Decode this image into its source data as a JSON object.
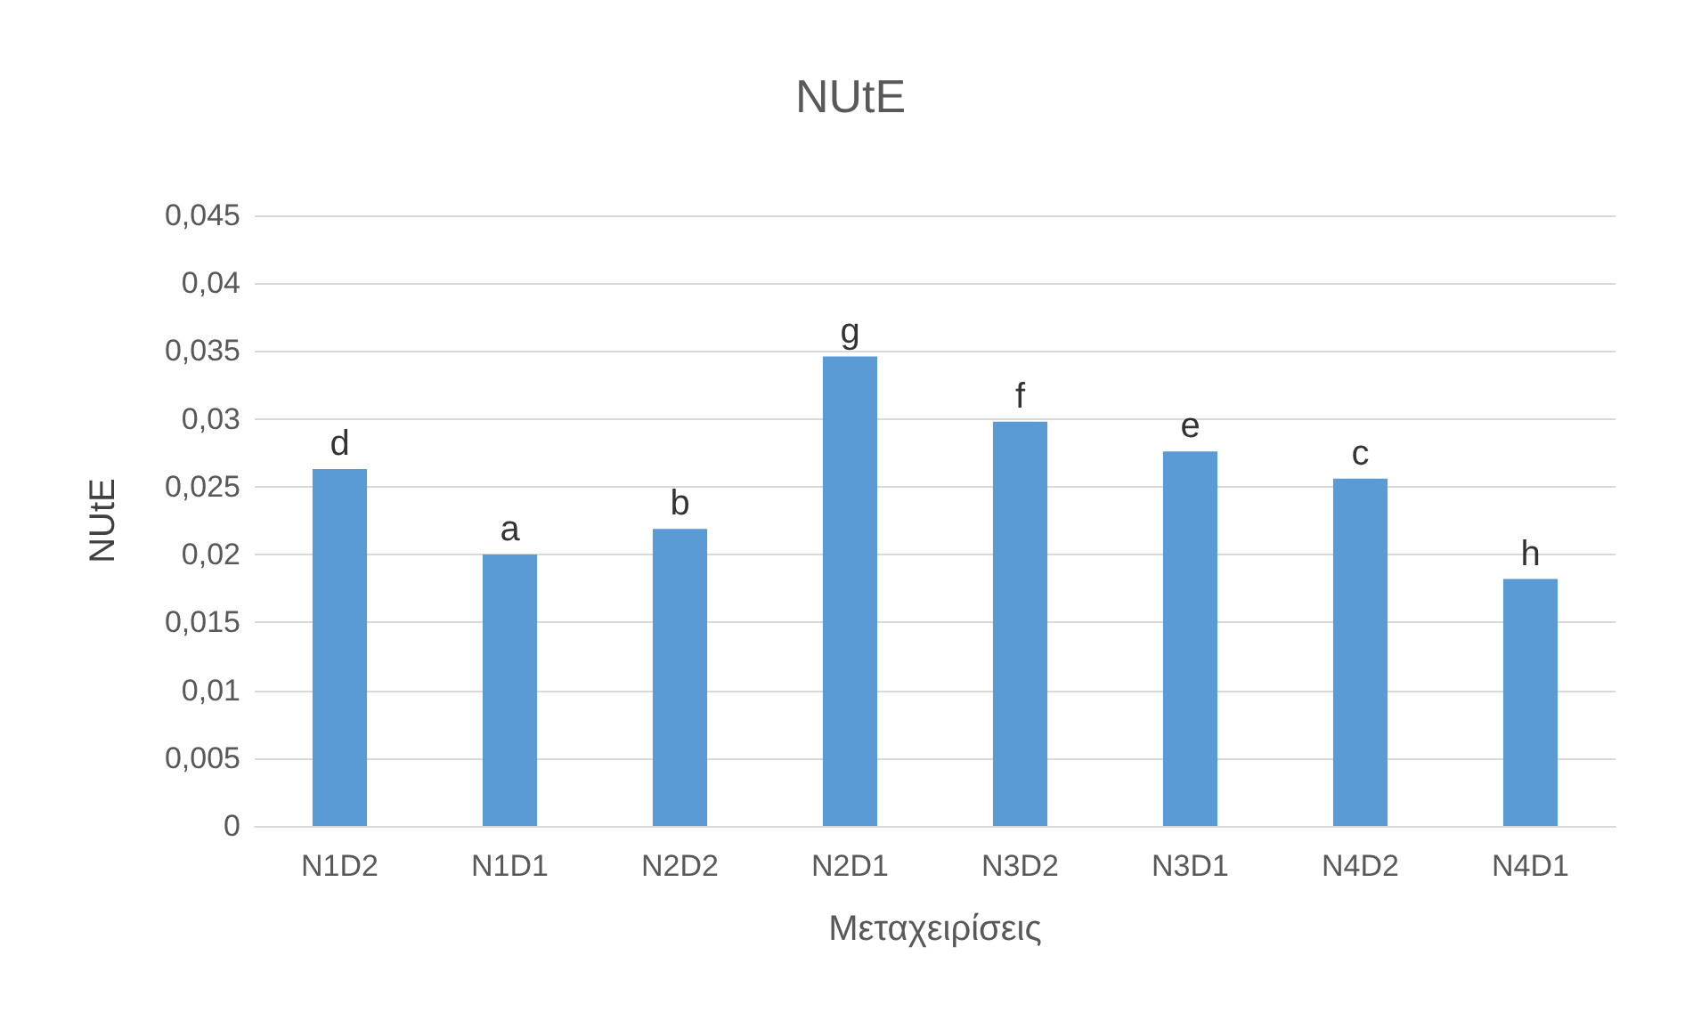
{
  "chart_data": {
    "type": "bar",
    "title": "NUtE",
    "xlabel": "Μεταχειρίσεις",
    "ylabel": "NUtE",
    "categories": [
      "N1D2",
      "N1D1",
      "N2D2",
      "N2D1",
      "N3D2",
      "N3D1",
      "N4D2",
      "N4D1"
    ],
    "values": [
      0.0263,
      0.02,
      0.0219,
      0.0346,
      0.0298,
      0.0276,
      0.0256,
      0.0182
    ],
    "color": "#5b9bd5",
    "ylim": [
      0,
      0.045
    ],
    "yticks": [
      0,
      {
        "value": 0.005,
        "label": "0,005"
      },
      {
        "value": 0.01,
        "label": "0,01"
      },
      {
        "value": 0.015,
        "label": "0,015"
      },
      {
        "value": 0.02,
        "label": "0,02"
      },
      {
        "value": 0.025,
        "label": "0,025"
      },
      {
        "value": 0.03,
        "label": "0,03"
      },
      {
        "value": 0.035,
        "label": "0,035"
      },
      {
        "value": 0.04,
        "label": "0,04"
      },
      {
        "value": 0.045,
        "label": "0,045"
      }
    ],
    "grid": "y",
    "annotations": [
      {
        "text": "d",
        "x": "N1D2",
        "y": 0.0263
      },
      {
        "text": "a",
        "x": "N1D1",
        "y": 0.02
      },
      {
        "text": "b",
        "x": "N2D2",
        "y": 0.0219
      },
      {
        "text": "g",
        "x": "N2D1",
        "y": 0.0346
      },
      {
        "text": "f",
        "x": "N3D2",
        "y": 0.0298
      },
      {
        "text": "e",
        "x": "N3D1",
        "y": 0.0276
      },
      {
        "text": "c",
        "x": "N4D2",
        "y": 0.0256
      },
      {
        "text": "h",
        "x": "N4D1",
        "y": 0.0182
      }
    ]
  }
}
